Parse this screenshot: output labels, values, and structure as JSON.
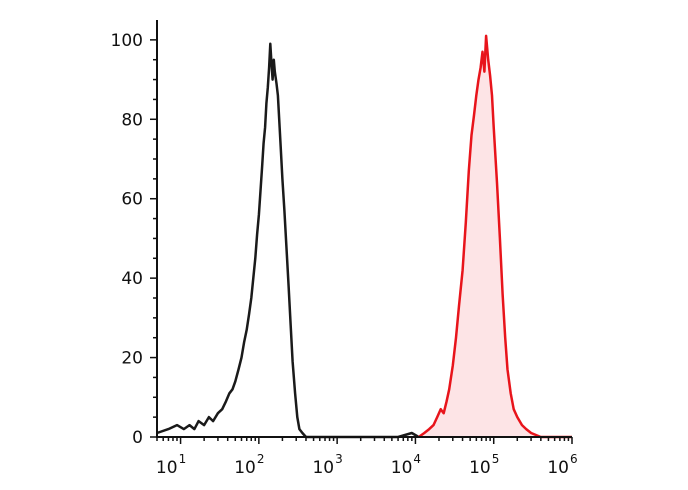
{
  "chart_data": {
    "type": "area",
    "x_scale": "log",
    "xlim": [
      5,
      1000000
    ],
    "ylim": [
      0,
      105
    ],
    "grid": false,
    "legend": "none",
    "x_ticks": [
      {
        "base": "10",
        "exp": "1",
        "value": 10
      },
      {
        "base": "10",
        "exp": "2",
        "value": 100
      },
      {
        "base": "10",
        "exp": "3",
        "value": 1000
      },
      {
        "base": "10",
        "exp": "4",
        "value": 10000
      },
      {
        "base": "10",
        "exp": "5",
        "value": 100000
      },
      {
        "base": "10",
        "exp": "6",
        "value": 1000000
      }
    ],
    "y_ticks": [
      {
        "label": "0",
        "value": 0
      },
      {
        "label": "20",
        "value": 20
      },
      {
        "label": "40",
        "value": 40
      },
      {
        "label": "60",
        "value": 60
      },
      {
        "label": "80",
        "value": 80
      },
      {
        "label": "100",
        "value": 100
      }
    ],
    "series": [
      {
        "color": "#1a1a1a",
        "fill": "none",
        "points": [
          [
            5,
            1
          ],
          [
            7,
            2
          ],
          [
            9,
            3
          ],
          [
            11,
            2
          ],
          [
            13,
            3
          ],
          [
            15,
            2
          ],
          [
            17,
            4
          ],
          [
            20,
            3
          ],
          [
            23,
            5
          ],
          [
            26,
            4
          ],
          [
            30,
            6
          ],
          [
            34,
            7
          ],
          [
            38,
            9
          ],
          [
            42,
            11
          ],
          [
            46,
            12
          ],
          [
            50,
            14
          ],
          [
            55,
            17
          ],
          [
            60,
            20
          ],
          [
            65,
            24
          ],
          [
            70,
            27
          ],
          [
            75,
            31
          ],
          [
            80,
            35
          ],
          [
            85,
            40
          ],
          [
            90,
            45
          ],
          [
            95,
            51
          ],
          [
            100,
            56
          ],
          [
            105,
            62
          ],
          [
            110,
            68
          ],
          [
            115,
            74
          ],
          [
            120,
            78
          ],
          [
            125,
            84
          ],
          [
            130,
            88
          ],
          [
            135,
            93
          ],
          [
            140,
            99
          ],
          [
            145,
            94
          ],
          [
            150,
            90
          ],
          [
            155,
            95
          ],
          [
            160,
            92
          ],
          [
            168,
            89
          ],
          [
            175,
            86
          ],
          [
            182,
            80
          ],
          [
            190,
            73
          ],
          [
            200,
            65
          ],
          [
            212,
            57
          ],
          [
            225,
            48
          ],
          [
            240,
            38
          ],
          [
            255,
            28
          ],
          [
            270,
            19
          ],
          [
            290,
            11
          ],
          [
            310,
            5
          ],
          [
            330,
            2
          ],
          [
            360,
            1
          ],
          [
            400,
            0
          ],
          [
            500,
            0
          ],
          [
            1000,
            0
          ],
          [
            3000,
            0
          ],
          [
            6000,
            0
          ],
          [
            9000,
            1
          ],
          [
            11000,
            0
          ]
        ]
      },
      {
        "color": "#e8141b",
        "fill": "#fde4e6",
        "points": [
          [
            11000,
            0
          ],
          [
            13000,
            1
          ],
          [
            15000,
            2
          ],
          [
            17000,
            3
          ],
          [
            19000,
            5
          ],
          [
            21000,
            7
          ],
          [
            23000,
            6
          ],
          [
            25000,
            9
          ],
          [
            27000,
            12
          ],
          [
            30000,
            18
          ],
          [
            33000,
            25
          ],
          [
            36000,
            33
          ],
          [
            40000,
            42
          ],
          [
            44000,
            54
          ],
          [
            48000,
            67
          ],
          [
            52000,
            76
          ],
          [
            56000,
            81
          ],
          [
            60000,
            86
          ],
          [
            64000,
            90
          ],
          [
            68000,
            93
          ],
          [
            72000,
            97
          ],
          [
            76000,
            92
          ],
          [
            80000,
            101
          ],
          [
            85000,
            95
          ],
          [
            90000,
            91
          ],
          [
            95000,
            86
          ],
          [
            100000,
            78
          ],
          [
            110000,
            64
          ],
          [
            120000,
            50
          ],
          [
            130000,
            36
          ],
          [
            140000,
            25
          ],
          [
            150000,
            17
          ],
          [
            165000,
            11
          ],
          [
            180000,
            7
          ],
          [
            200000,
            5
          ],
          [
            230000,
            3
          ],
          [
            260000,
            2
          ],
          [
            300000,
            1
          ],
          [
            400000,
            0
          ],
          [
            1000000,
            0
          ]
        ]
      }
    ]
  }
}
